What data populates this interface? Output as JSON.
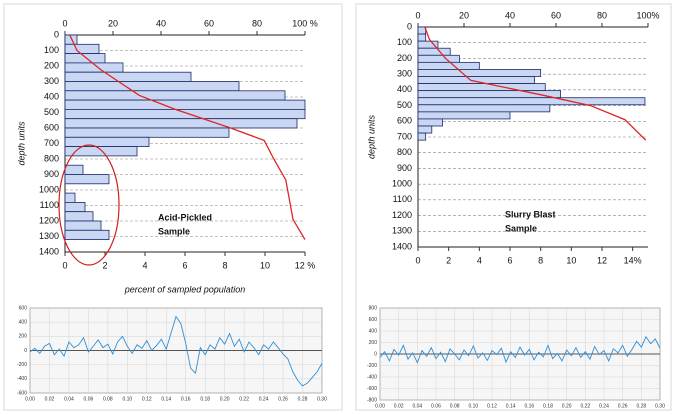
{
  "chart_data": [
    {
      "type": "histogram",
      "y_label": "depth units",
      "x_label": "percent of sampled population",
      "annotation": [
        "Acid-Pickled",
        "Sample"
      ],
      "bins": [
        0,
        60,
        120,
        180,
        240,
        300,
        360,
        420,
        480,
        540,
        600,
        660,
        720,
        780,
        840,
        900,
        960,
        1020,
        1080,
        1140,
        1200,
        1260,
        1320
      ],
      "values": [
        0.6,
        1.7,
        2.0,
        2.9,
        6.3,
        8.7,
        11.0,
        12.0,
        12.0,
        11.6,
        8.2,
        4.2,
        3.6,
        0,
        0.9,
        2.2,
        0,
        0.5,
        1.0,
        1.4,
        1.8,
        2.2
      ],
      "color": "#c9d7f2",
      "ylim": [
        0,
        1400
      ],
      "yticks": [
        0,
        100,
        200,
        300,
        400,
        500,
        600,
        700,
        800,
        900,
        1000,
        1100,
        1200,
        1300,
        1400
      ],
      "xlim": [
        0,
        12
      ],
      "xticks": [
        0,
        2,
        4,
        6,
        8,
        10,
        {
          "value": 12,
          "label": "12 %"
        }
      ],
      "x2lim": [
        0,
        100
      ],
      "x2ticks": [
        0,
        20,
        40,
        60,
        80,
        {
          "value": 100,
          "label": "100 %"
        }
      ],
      "curve": {
        "color": "#e02424",
        "depth": [
          0,
          100,
          225,
          390,
          480,
          600,
          680,
          800,
          935,
          1190,
          1320
        ],
        "values": [
          2,
          5,
          15,
          31,
          46,
          69,
          83,
          87,
          92,
          95,
          100
        ]
      }
    },
    {
      "type": "histogram",
      "y_label": "depth units",
      "annotation": [
        "Slurry Blast",
        "Sample"
      ],
      "bins": [
        0,
        45,
        90,
        135,
        180,
        225,
        270,
        315,
        360,
        405,
        450,
        495,
        540,
        585,
        630,
        675,
        720
      ],
      "values": [
        0.5,
        0.5,
        1.3,
        2.1,
        2.7,
        4.0,
        8.0,
        7.6,
        8.3,
        9.3,
        14.8,
        8.6,
        6.0,
        1.6,
        0.9,
        0.5
      ],
      "color": "#c9d7f2",
      "ylim": [
        0,
        1400
      ],
      "yticks": [
        0,
        100,
        200,
        300,
        400,
        500,
        600,
        700,
        800,
        900,
        1000,
        1100,
        1200,
        1300,
        1400
      ],
      "xlim": [
        0,
        15
      ],
      "xticks": [
        0,
        2,
        4,
        6,
        8,
        10,
        12,
        {
          "value": 14,
          "label": "14%"
        }
      ],
      "x2lim": [
        0,
        100
      ],
      "x2ticks": [
        0,
        20,
        40,
        60,
        80,
        {
          "value": 100,
          "label": "100%"
        }
      ],
      "curve": {
        "color": "#e02424",
        "depth": [
          0,
          80,
          200,
          340,
          430,
          500,
          590,
          720
        ],
        "values": [
          3,
          5,
          12,
          23,
          53,
          75,
          90,
          99
        ]
      }
    },
    {
      "type": "line",
      "color": "#2f8fd8",
      "x": [
        0,
        0.005,
        0.01,
        0.015,
        0.02,
        0.025,
        0.03,
        0.035,
        0.04,
        0.045,
        0.05,
        0.055,
        0.06,
        0.065,
        0.07,
        0.075,
        0.08,
        0.085,
        0.09,
        0.095,
        0.1,
        0.105,
        0.11,
        0.115,
        0.12,
        0.125,
        0.13,
        0.135,
        0.14,
        0.145,
        0.15,
        0.155,
        0.16,
        0.165,
        0.17,
        0.175,
        0.18,
        0.185,
        0.19,
        0.195,
        0.2,
        0.205,
        0.21,
        0.215,
        0.22,
        0.225,
        0.23,
        0.235,
        0.24,
        0.245,
        0.25,
        0.255,
        0.26,
        0.265,
        0.27,
        0.275,
        0.28,
        0.285,
        0.29,
        0.295,
        0.3
      ],
      "values": [
        -20,
        30,
        -40,
        60,
        100,
        -60,
        20,
        -80,
        120,
        40,
        80,
        180,
        -20,
        60,
        150,
        40,
        90,
        -50,
        120,
        200,
        60,
        -40,
        80,
        30,
        140,
        0,
        70,
        160,
        20,
        250,
        480,
        380,
        100,
        -250,
        -320,
        40,
        -60,
        80,
        20,
        180,
        90,
        240,
        60,
        160,
        -20,
        120,
        40,
        -60,
        80,
        20,
        120,
        40,
        -50,
        -120,
        -300,
        -420,
        -500,
        -460,
        -380,
        -300,
        -180
      ],
      "xlim": [
        0,
        0.3
      ],
      "xticks": [
        {
          "value": 0,
          "label": "0.00"
        },
        0.02,
        0.04,
        0.06,
        0.08,
        {
          "value": 0.1,
          "label": "0.10"
        },
        0.12,
        0.14,
        0.16,
        0.18,
        {
          "value": 0.2,
          "label": "0.20"
        },
        0.22,
        0.24,
        0.26,
        0.28,
        {
          "value": 0.3,
          "label": "0.30"
        }
      ],
      "ylim": [
        -600,
        600
      ],
      "yticks": [
        -600,
        -400,
        -200,
        0,
        200,
        400,
        600
      ]
    },
    {
      "type": "line",
      "color": "#2f8fd8",
      "x": [
        0,
        0.005,
        0.01,
        0.015,
        0.02,
        0.025,
        0.03,
        0.035,
        0.04,
        0.045,
        0.05,
        0.055,
        0.06,
        0.065,
        0.07,
        0.075,
        0.08,
        0.085,
        0.09,
        0.095,
        0.1,
        0.105,
        0.11,
        0.115,
        0.12,
        0.125,
        0.13,
        0.135,
        0.14,
        0.145,
        0.15,
        0.155,
        0.16,
        0.165,
        0.17,
        0.175,
        0.18,
        0.185,
        0.19,
        0.195,
        0.2,
        0.205,
        0.21,
        0.215,
        0.22,
        0.225,
        0.23,
        0.235,
        0.24,
        0.245,
        0.25,
        0.255,
        0.26,
        0.265,
        0.27,
        0.275,
        0.28,
        0.285,
        0.29,
        0.295,
        0.3
      ],
      "values": [
        -60,
        40,
        -120,
        80,
        -20,
        150,
        -90,
        20,
        -150,
        60,
        -40,
        110,
        -80,
        30,
        -130,
        90,
        0,
        -100,
        70,
        -30,
        140,
        -70,
        20,
        -110,
        60,
        -10,
        100,
        -140,
        40,
        -60,
        120,
        -20,
        80,
        -100,
        30,
        -50,
        150,
        -80,
        10,
        -120,
        70,
        -30,
        110,
        -60,
        40,
        -90,
        130,
        -10,
        60,
        -120,
        90,
        20,
        150,
        -40,
        80,
        220,
        120,
        300,
        180,
        260,
        100
      ],
      "xlim": [
        0,
        0.3
      ],
      "xticks": [
        {
          "value": 0,
          "label": "0.00"
        },
        0.02,
        0.04,
        0.06,
        0.08,
        {
          "value": 0.1,
          "label": "0.10"
        },
        0.12,
        0.14,
        0.16,
        0.18,
        {
          "value": 0.2,
          "label": "0.20"
        },
        0.22,
        0.24,
        0.26,
        0.28,
        {
          "value": 0.3,
          "label": "0.30"
        }
      ],
      "ylim": [
        -800,
        800
      ],
      "yticks": [
        -800,
        -600,
        -400,
        -200,
        0,
        200,
        400,
        600,
        800
      ]
    }
  ]
}
